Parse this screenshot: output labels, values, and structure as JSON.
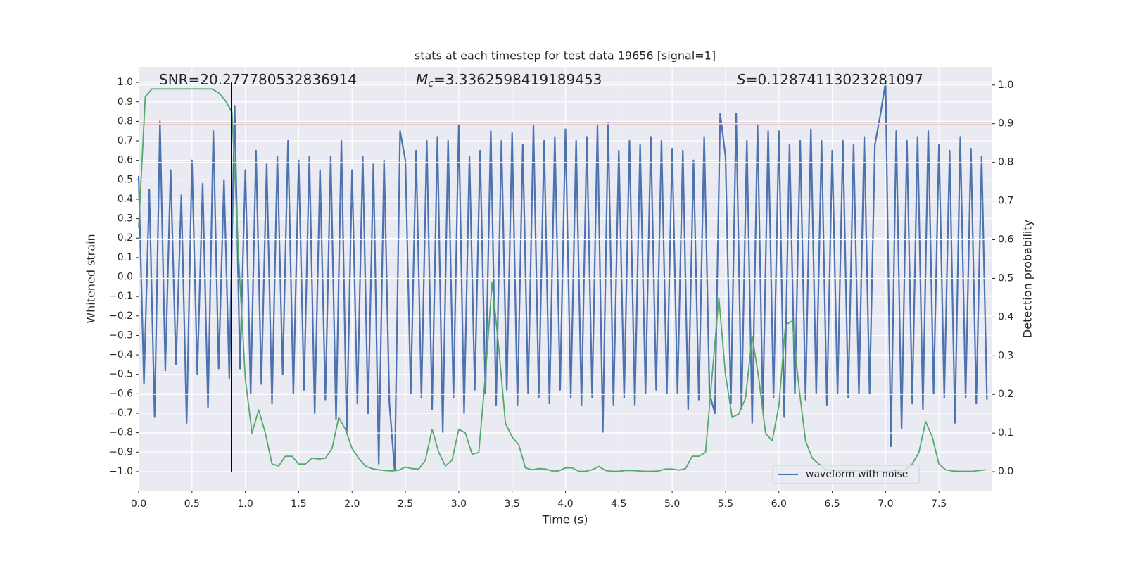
{
  "chart_data": {
    "type": "line",
    "title": "stats at each timestep for test data 19656 [signal=1]",
    "xlabel": "Time (s)",
    "ylabel": "Whitened strain",
    "y2label": "Detection probability",
    "xlim": [
      0,
      8.0
    ],
    "ylim": [
      -1.098,
      1.08
    ],
    "y2lim": [
      -0.049,
      1.047
    ],
    "grid": true,
    "legend": "lower right",
    "xticks": [
      {
        "value": 0,
        "label": "0.0"
      },
      {
        "value": 0.5,
        "label": "0.5"
      },
      {
        "value": 1,
        "label": "1.0"
      },
      {
        "value": 1.5,
        "label": "1.5"
      },
      {
        "value": 2,
        "label": "2.0"
      },
      {
        "value": 2.5,
        "label": "2.5"
      },
      {
        "value": 3,
        "label": "3.0"
      },
      {
        "value": 3.5,
        "label": "3.5"
      },
      {
        "value": 4,
        "label": "4.0"
      },
      {
        "value": 4.5,
        "label": "4.5"
      },
      {
        "value": 5,
        "label": "5.0"
      },
      {
        "value": 5.5,
        "label": "5.5"
      },
      {
        "value": 6,
        "label": "6.0"
      },
      {
        "value": 6.5,
        "label": "6.5"
      },
      {
        "value": 7,
        "label": "7.0"
      },
      {
        "value": 7.5,
        "label": "7.5"
      }
    ],
    "yticks": [
      {
        "value": -1,
        "label": "−1.0"
      },
      {
        "value": -0.9,
        "label": "−0.9"
      },
      {
        "value": -0.8,
        "label": "−0.8"
      },
      {
        "value": -0.7,
        "label": "−0.7"
      },
      {
        "value": -0.6,
        "label": "−0.6"
      },
      {
        "value": -0.5,
        "label": "−0.5"
      },
      {
        "value": -0.4,
        "label": "−0.4"
      },
      {
        "value": -0.3,
        "label": "−0.3"
      },
      {
        "value": -0.2,
        "label": "−0.2"
      },
      {
        "value": -0.1,
        "label": "−0.1"
      },
      {
        "value": 0,
        "label": "0.0"
      },
      {
        "value": 0.1,
        "label": "0.1"
      },
      {
        "value": 0.2,
        "label": "0.2"
      },
      {
        "value": 0.3,
        "label": "0.3"
      },
      {
        "value": 0.4,
        "label": "0.4"
      },
      {
        "value": 0.5,
        "label": "0.5"
      },
      {
        "value": 0.6,
        "label": "0.6"
      },
      {
        "value": 0.7,
        "label": "0.7"
      },
      {
        "value": 0.8,
        "label": "0.8"
      },
      {
        "value": 0.9,
        "label": "0.9"
      },
      {
        "value": 1,
        "label": "1.0"
      }
    ],
    "y2ticks": [
      {
        "value": 0,
        "label": "0.0"
      },
      {
        "value": 0.1,
        "label": "0.1"
      },
      {
        "value": 0.2,
        "label": "0.2"
      },
      {
        "value": 0.3,
        "label": "0.3"
      },
      {
        "value": 0.4,
        "label": "0.4"
      },
      {
        "value": 0.5,
        "label": "0.5"
      },
      {
        "value": 0.6,
        "label": "0.6"
      },
      {
        "value": 0.7,
        "label": "0.7"
      },
      {
        "value": 0.8,
        "label": "0.8"
      },
      {
        "value": 0.9,
        "label": "0.9"
      },
      {
        "value": 1,
        "label": "1.0"
      }
    ],
    "series": [
      {
        "name": "waveform with noise",
        "color": "#4c72b0",
        "x": [
          0,
          0.05,
          0.1,
          0.15,
          0.2,
          0.25,
          0.3,
          0.35,
          0.4,
          0.45,
          0.5,
          0.55,
          0.6,
          0.65,
          0.7,
          0.75,
          0.8,
          0.85,
          0.9,
          0.95,
          1,
          1.05,
          1.1,
          1.15,
          1.2,
          1.25,
          1.3,
          1.35,
          1.4,
          1.45,
          1.5,
          1.55,
          1.6,
          1.65,
          1.7,
          1.75,
          1.8,
          1.85,
          1.9,
          1.95,
          2,
          2.05,
          2.1,
          2.15,
          2.2,
          2.25,
          2.3,
          2.35,
          2.4,
          2.45,
          2.5,
          2.55,
          2.6,
          2.65,
          2.7,
          2.75,
          2.8,
          2.85,
          2.9,
          2.95,
          3,
          3.05,
          3.1,
          3.15,
          3.2,
          3.25,
          3.3,
          3.35,
          3.4,
          3.45,
          3.5,
          3.55,
          3.6,
          3.65,
          3.7,
          3.75,
          3.8,
          3.85,
          3.9,
          3.95,
          4,
          4.05,
          4.1,
          4.15,
          4.2,
          4.25,
          4.3,
          4.35,
          4.4,
          4.45,
          4.5,
          4.55,
          4.6,
          4.65,
          4.7,
          4.75,
          4.8,
          4.85,
          4.9,
          4.95,
          5,
          5.05,
          5.1,
          5.15,
          5.2,
          5.25,
          5.3,
          5.35,
          5.4,
          5.45,
          5.5,
          5.55,
          5.6,
          5.65,
          5.7,
          5.75,
          5.8,
          5.85,
          5.9,
          5.95,
          6,
          6.05,
          6.1,
          6.15,
          6.2,
          6.25,
          6.3,
          6.35,
          6.4,
          6.45,
          6.5,
          6.55,
          6.6,
          6.65,
          6.7,
          6.75,
          6.8,
          6.85,
          6.9,
          6.95,
          7,
          7.05,
          7.1,
          7.15,
          7.2,
          7.25,
          7.3,
          7.35,
          7.4,
          7.45,
          7.5,
          7.55,
          7.6,
          7.65,
          7.7,
          7.75,
          7.8,
          7.85,
          7.9,
          7.95
        ],
        "values": [
          0.52,
          -0.55,
          0.45,
          -0.72,
          0.8,
          -0.48,
          0.55,
          -0.45,
          0.42,
          -0.75,
          0.6,
          -0.5,
          0.48,
          -0.67,
          0.75,
          -0.47,
          0.5,
          -0.52,
          0.88,
          -0.47,
          0.55,
          -0.6,
          0.65,
          -0.55,
          0.58,
          -0.65,
          0.62,
          -0.5,
          0.7,
          -0.6,
          0.6,
          -0.58,
          0.62,
          -0.7,
          0.55,
          -0.63,
          0.62,
          -0.73,
          0.7,
          -0.8,
          0.55,
          -0.65,
          0.62,
          -0.7,
          0.58,
          -0.96,
          0.6,
          -0.65,
          -1.0,
          0.75,
          0.6,
          -0.6,
          0.65,
          -0.62,
          0.7,
          -0.68,
          0.72,
          -0.8,
          0.7,
          -0.62,
          0.78,
          -0.7,
          0.62,
          -0.58,
          0.65,
          -0.6,
          0.75,
          -0.66,
          0.7,
          -0.58,
          0.74,
          -0.66,
          0.68,
          -0.6,
          0.78,
          -0.62,
          0.7,
          -0.65,
          0.72,
          -0.58,
          0.76,
          -0.62,
          0.7,
          -0.66,
          0.72,
          -0.62,
          0.78,
          -0.8,
          0.79,
          -0.66,
          0.65,
          -0.62,
          0.7,
          -0.66,
          0.68,
          -0.6,
          0.72,
          -0.58,
          0.7,
          -0.6,
          0.66,
          -0.6,
          0.65,
          -0.68,
          0.6,
          -0.63,
          0.72,
          -0.6,
          -0.7,
          0.84,
          0.62,
          -0.65,
          0.84,
          -0.68,
          0.7,
          -0.75,
          0.78,
          -0.68,
          0.75,
          -0.62,
          0.75,
          -0.72,
          0.68,
          -0.6,
          0.7,
          -0.63,
          0.76,
          -0.6,
          0.7,
          -0.66,
          0.65,
          -0.6,
          0.7,
          -0.62,
          0.68,
          -0.6,
          0.72,
          -0.6,
          0.68,
          0.83,
          1.0,
          -0.87,
          0.75,
          -0.78,
          0.7,
          -0.65,
          0.72,
          -0.68,
          0.75,
          -0.6,
          0.68,
          -0.62,
          0.65,
          -0.75,
          0.72,
          -0.62,
          0.66,
          -0.65,
          0.62,
          -0.63
        ]
      },
      {
        "color": "#55a868",
        "axis": "y2",
        "x": [
          0,
          0.0625,
          0.125,
          0.1875,
          0.25,
          0.3125,
          0.375,
          0.4375,
          0.5,
          0.5625,
          0.625,
          0.6875,
          0.75,
          0.8125,
          0.875,
          0.9375,
          1,
          1.0625,
          1.125,
          1.1875,
          1.25,
          1.3125,
          1.375,
          1.4375,
          1.5,
          1.5625,
          1.625,
          1.6875,
          1.75,
          1.8125,
          1.875,
          1.9375,
          2,
          2.0625,
          2.125,
          2.1875,
          2.25,
          2.3125,
          2.375,
          2.4375,
          2.5,
          2.5625,
          2.625,
          2.6875,
          2.75,
          2.8125,
          2.875,
          2.9375,
          3,
          3.0625,
          3.125,
          3.1875,
          3.25,
          3.3125,
          3.375,
          3.4375,
          3.5,
          3.5625,
          3.625,
          3.6875,
          3.75,
          3.8125,
          3.875,
          3.9375,
          4,
          4.0625,
          4.125,
          4.1875,
          4.25,
          4.3125,
          4.375,
          4.4375,
          4.5,
          4.5625,
          4.625,
          4.6875,
          4.75,
          4.8125,
          4.875,
          4.9375,
          5,
          5.0625,
          5.125,
          5.1875,
          5.25,
          5.3125,
          5.375,
          5.4375,
          5.5,
          5.5625,
          5.625,
          5.6875,
          5.75,
          5.8125,
          5.875,
          5.9375,
          6,
          6.0625,
          6.125,
          6.1875,
          6.25,
          6.3125,
          6.375,
          6.4375,
          6.5,
          6.5625,
          6.625,
          6.6875,
          6.75,
          6.8125,
          6.875,
          6.9375,
          7,
          7.0625,
          7.125,
          7.1875,
          7.25,
          7.3125,
          7.375,
          7.4375,
          7.5,
          7.5625,
          7.625,
          7.6875,
          7.75,
          7.8125,
          7.875,
          7.9375
        ],
        "values": [
          0.63,
          0.97,
          0.99,
          0.99,
          0.99,
          0.99,
          0.99,
          0.99,
          0.99,
          0.99,
          0.99,
          0.99,
          0.98,
          0.96,
          0.93,
          0.55,
          0.24,
          0.1,
          0.16,
          0.1,
          0.02,
          0.015,
          0.04,
          0.04,
          0.02,
          0.02,
          0.035,
          0.033,
          0.035,
          0.06,
          0.14,
          0.11,
          0.06,
          0.035,
          0.015,
          0.008,
          0.005,
          0.003,
          0.002,
          0.004,
          0.012,
          0.008,
          0.007,
          0.03,
          0.11,
          0.05,
          0.015,
          0.03,
          0.11,
          0.1,
          0.045,
          0.05,
          0.25,
          0.49,
          0.32,
          0.125,
          0.09,
          0.07,
          0.01,
          0.005,
          0.008,
          0.007,
          0.002,
          0.002,
          0.01,
          0.01,
          0.001,
          0.001,
          0.005,
          0.014,
          0.003,
          0.001,
          0.001,
          0.003,
          0.003,
          0.002,
          0.001,
          0.001,
          0.002,
          0.007,
          0.007,
          0.004,
          0.008,
          0.04,
          0.04,
          0.05,
          0.25,
          0.45,
          0.25,
          0.14,
          0.15,
          0.19,
          0.35,
          0.24,
          0.1,
          0.08,
          0.17,
          0.38,
          0.39,
          0.22,
          0.08,
          0.035,
          0.02,
          0.006,
          0.003,
          0.002,
          0.002,
          0.002,
          0.003,
          0.002,
          0.001,
          0.001,
          0.001,
          0.002,
          0.003,
          0.005,
          0.02,
          0.05,
          0.13,
          0.09,
          0.02,
          0.005,
          0.002,
          0.001,
          0.001,
          0.001,
          0.003,
          0.005
        ]
      }
    ],
    "hline": {
      "value": 0.9,
      "axis": "y2",
      "color": "#c44e52"
    },
    "vline": {
      "x": 0.87,
      "ymin": -1,
      "ymax": 1,
      "color": "#000000"
    },
    "annotations": [
      {
        "text": "SNR=20.277780532836914"
      },
      {
        "symbol": "M",
        "subscript": "c",
        "text": "=3.3362598419189453"
      },
      {
        "symbol": "S",
        "text": "=0.12874113023281097"
      }
    ]
  }
}
